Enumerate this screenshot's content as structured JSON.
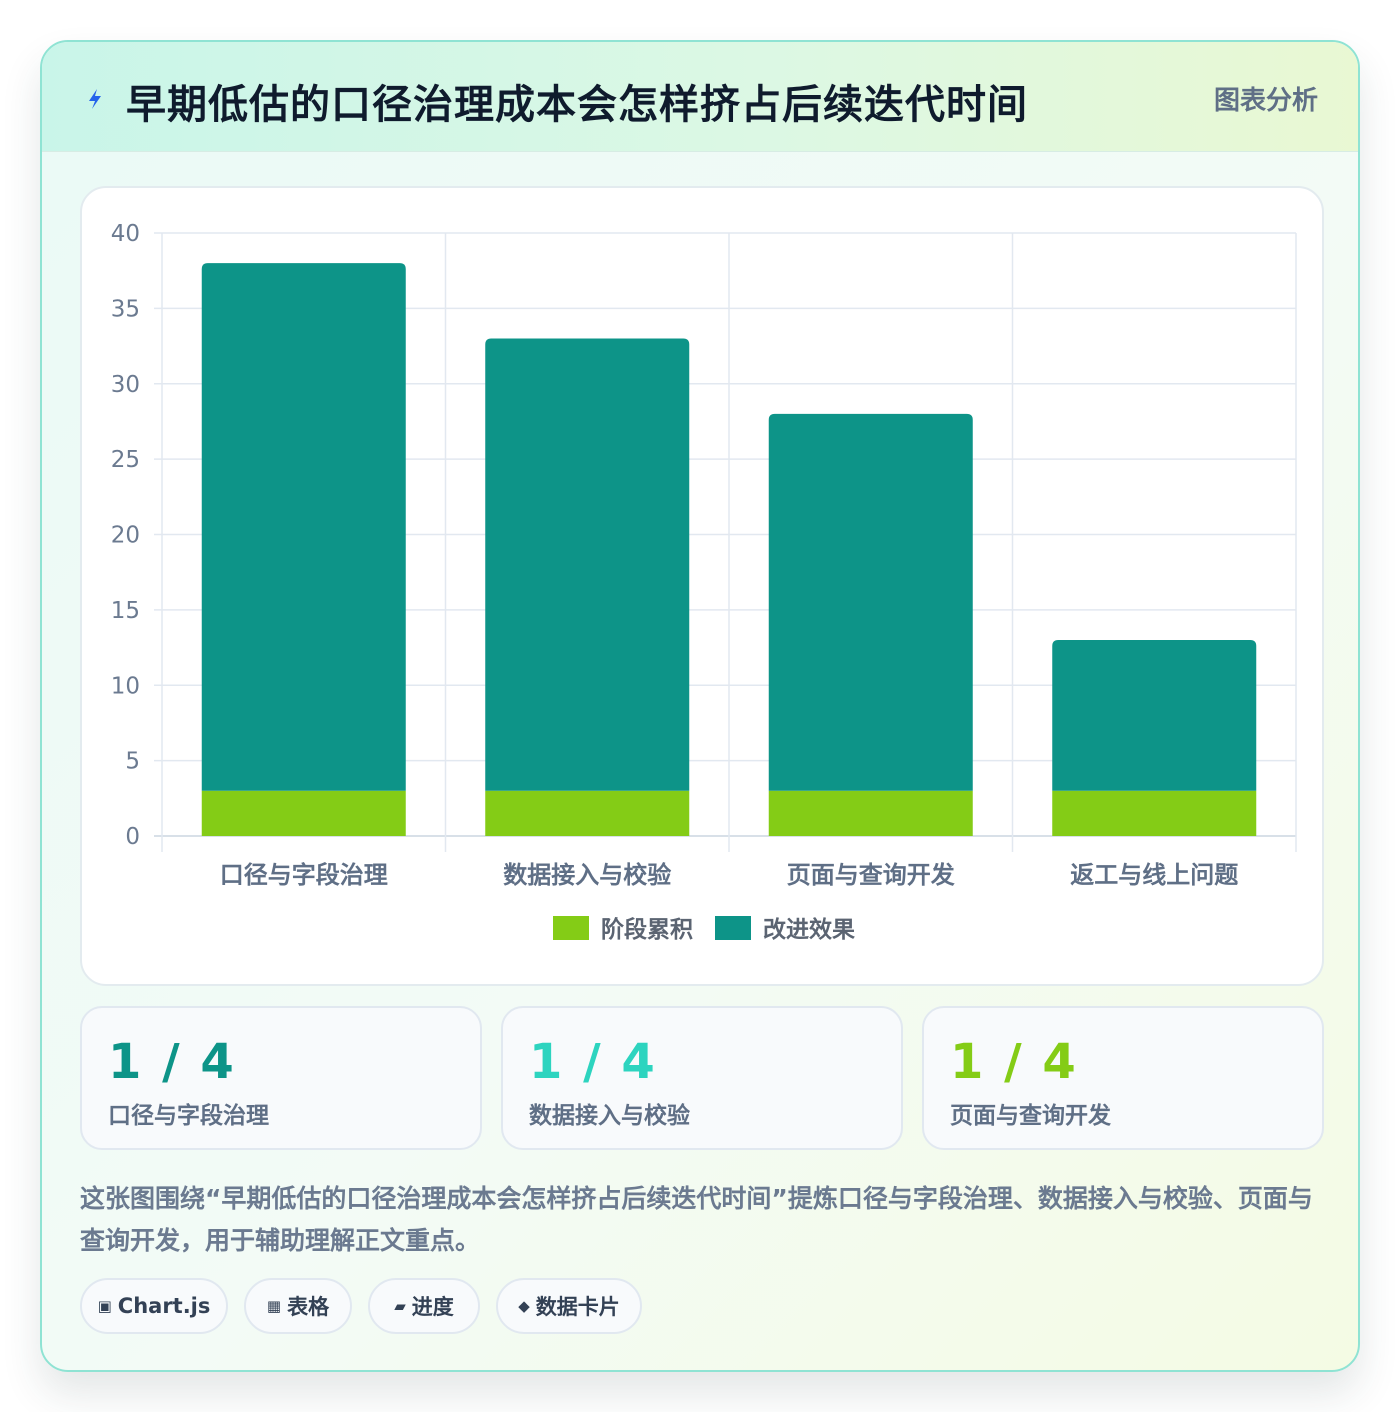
{
  "header": {
    "title": "早期低估的口径治理成本会怎样挤占后续迭代时间",
    "tag": "图表分析",
    "icon": "lightning-icon"
  },
  "chart_data": {
    "type": "bar",
    "stacked": true,
    "categories": [
      "口径与字段治理",
      "数据接入与校验",
      "页面与查询开发",
      "返工与线上问题"
    ],
    "series": [
      {
        "name": "阶段累积",
        "values": [
          3,
          3,
          3,
          3
        ],
        "color": "#84cc16"
      },
      {
        "name": "改进效果",
        "values": [
          35,
          30,
          25,
          10
        ],
        "color": "#0d9488"
      }
    ],
    "ylim": [
      0,
      40
    ],
    "yticks": [
      0,
      5,
      10,
      15,
      20,
      25,
      30,
      35,
      40
    ],
    "grid": true,
    "legend_position": "bottom"
  },
  "stats": [
    {
      "value": "1 / 4",
      "label": "口径与字段治理",
      "color": "#0d9488"
    },
    {
      "value": "1 / 4",
      "label": "数据接入与校验",
      "color": "#2dd4bf"
    },
    {
      "value": "1 / 4",
      "label": "页面与查询开发",
      "color": "#84cc16"
    }
  ],
  "description": "这张图围绕“早期低估的口径治理成本会怎样挤占后续迭代时间”提炼口径与字段治理、数据接入与校验、页面与查询开发，用于辅助理解正文重点。",
  "chips": [
    {
      "icon": "▣",
      "label": "Chart.js",
      "icon_name": "chart-icon"
    },
    {
      "icon": "▦",
      "label": "表格",
      "icon_name": "table-icon"
    },
    {
      "icon": "▰",
      "label": "进度",
      "icon_name": "progress-icon"
    },
    {
      "icon": "◆",
      "label": "数据卡片",
      "icon_name": "diamond-icon"
    }
  ],
  "colors": {
    "accent_teal": "#0d9488",
    "accent_lime": "#84cc16",
    "accent_aqua": "#2dd4bf",
    "border": "#8fe3d3"
  }
}
